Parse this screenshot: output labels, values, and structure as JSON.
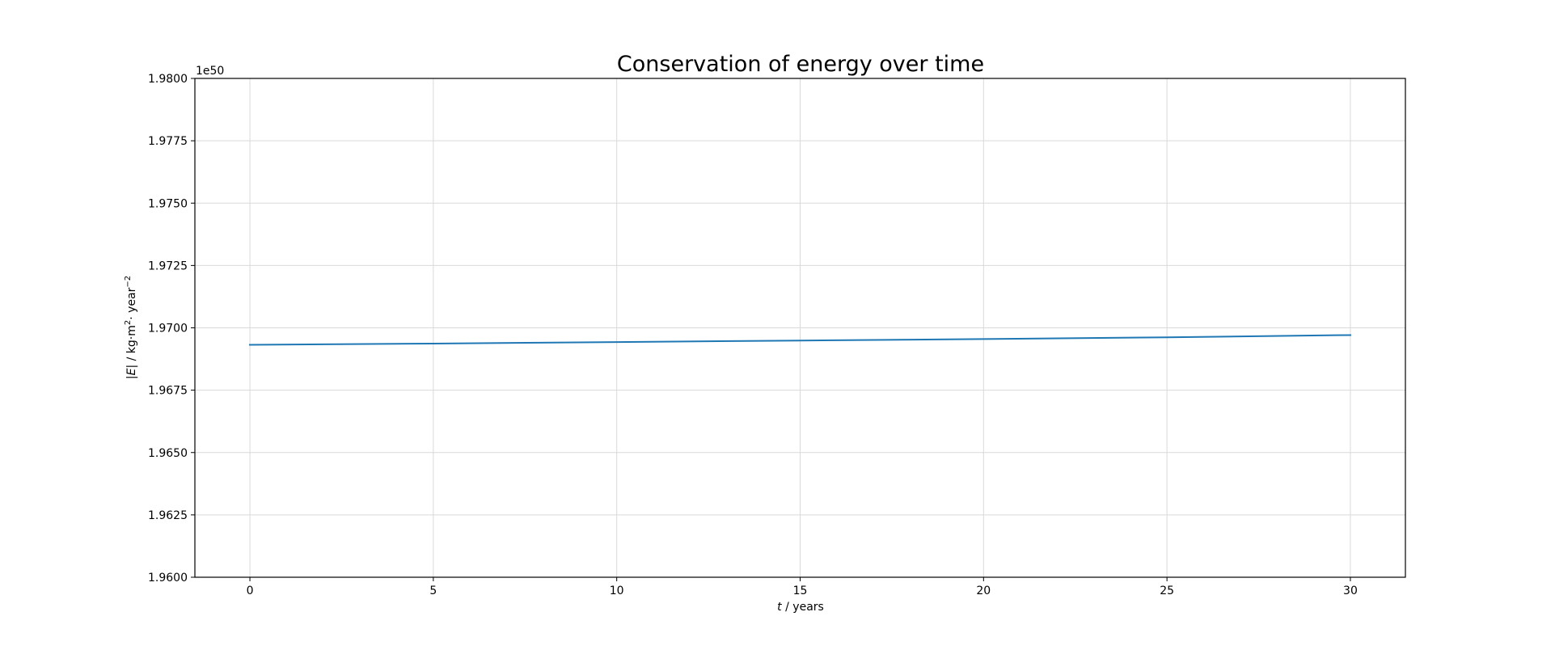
{
  "chart_data": {
    "type": "line",
    "title": "Conservation of energy over time",
    "xlabel_italic": "t",
    "xlabel_rest": " / years",
    "ylabel_prefix": "|",
    "ylabel_italic": "E",
    "ylabel_mid": "| / kg·m",
    "ylabel_sup1": "2",
    "ylabel_mid2": "· year",
    "ylabel_sup2": "−2",
    "offset_text": "1e50",
    "xlim": [
      -1.5,
      31.5
    ],
    "ylim": [
      1.96,
      1.98
    ],
    "x_ticks": [
      0,
      5,
      10,
      15,
      20,
      25,
      30
    ],
    "x_tick_labels": [
      "0",
      "5",
      "10",
      "15",
      "20",
      "25",
      "30"
    ],
    "y_ticks": [
      1.96,
      1.9625,
      1.965,
      1.9675,
      1.97,
      1.9725,
      1.975,
      1.9775,
      1.98
    ],
    "y_tick_labels": [
      "1.9600",
      "1.9625",
      "1.9650",
      "1.9675",
      "1.9700",
      "1.9725",
      "1.9750",
      "1.9775",
      "1.9800"
    ],
    "grid": true,
    "series": [
      {
        "color": "#1f77b4",
        "x": [
          0,
          5,
          10,
          15,
          20,
          25,
          30
        ],
        "y": [
          1.96932,
          1.96937,
          1.96943,
          1.96949,
          1.96955,
          1.96962,
          1.96971
        ]
      }
    ]
  }
}
